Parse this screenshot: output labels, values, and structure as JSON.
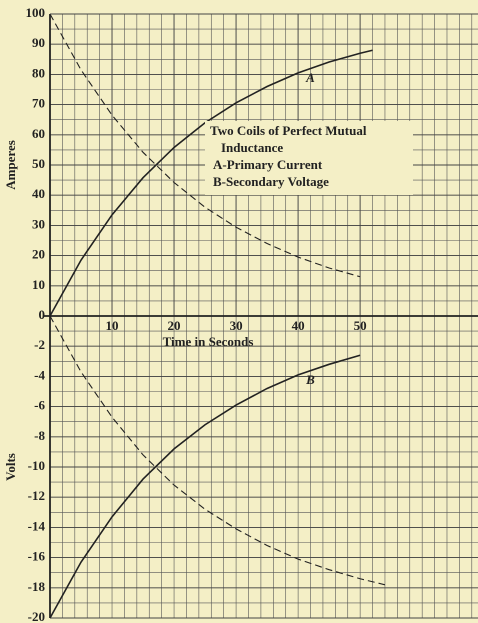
{
  "chart_data": [
    {
      "type": "line",
      "ylabel": "Amperes",
      "xlabel": "Time in Seconds",
      "xlim": [
        0,
        69
      ],
      "xticks": [
        10,
        20,
        30,
        40,
        50
      ],
      "ylim": [
        0,
        100
      ],
      "yticks": [
        0,
        10,
        20,
        30,
        40,
        50,
        60,
        70,
        80,
        90,
        100
      ],
      "xgrid_step": 2,
      "ygrid_step": 5,
      "grid": true,
      "annotations": [
        "Two Coils of Perfect Mutual",
        "Inductance",
        "A-Primary Current",
        "B-Secondary Voltage"
      ],
      "series": [
        {
          "name": "A",
          "color": "#222222",
          "dashed": false,
          "x": [
            0,
            5,
            10,
            15,
            20,
            25,
            30,
            35,
            40,
            45,
            50,
            52
          ],
          "values": [
            0,
            18.5,
            33.5,
            45.8,
            55.8,
            64,
            70.6,
            76,
            80.5,
            84.1,
            87,
            88
          ]
        },
        {
          "color": "#222222",
          "dashed": true,
          "x": [
            0,
            5,
            10,
            15,
            20,
            25,
            30,
            35,
            40,
            45,
            50
          ],
          "values": [
            100,
            81.5,
            66.5,
            54.2,
            44.2,
            36,
            29.4,
            24,
            19.5,
            15.9,
            13
          ]
        }
      ]
    },
    {
      "type": "line",
      "ylabel": "Volts",
      "xlim": [
        0,
        69
      ],
      "ylim": [
        -20,
        0
      ],
      "yticks": [
        -2,
        -4,
        -6,
        -8,
        -10,
        -12,
        -14,
        -16,
        -18,
        -20
      ],
      "xgrid_step": 2,
      "ygrid_step": 1,
      "grid": true,
      "series": [
        {
          "name": "B",
          "color": "#222222",
          "dashed": false,
          "x": [
            0,
            5,
            10,
            15,
            20,
            25,
            30,
            35,
            40,
            45,
            50
          ],
          "values": [
            -20,
            -16.3,
            -13.3,
            -10.8,
            -8.8,
            -7.2,
            -5.9,
            -4.8,
            -3.9,
            -3.2,
            -2.6
          ]
        },
        {
          "color": "#222222",
          "dashed": true,
          "x": [
            0,
            5,
            10,
            15,
            20,
            25,
            30,
            35,
            40,
            45,
            50,
            54
          ],
          "values": [
            0,
            -3.7,
            -6.7,
            -9.2,
            -11.2,
            -12.8,
            -14.1,
            -15.2,
            -16.1,
            -16.8,
            -17.4,
            -17.8
          ]
        }
      ]
    }
  ]
}
